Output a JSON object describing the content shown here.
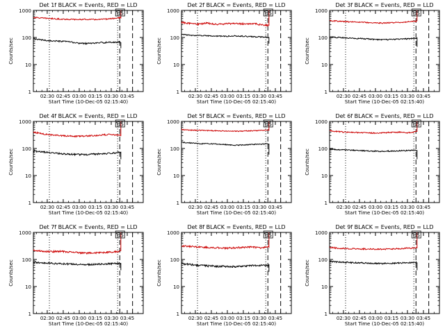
{
  "figure": {
    "background": "#ffffff",
    "axis_color": "#000000",
    "events_color": "#000000",
    "lld_color": "#cc0000"
  },
  "chart_data": [
    {
      "type": "line",
      "title": "Det 1f BLACK = Events, RED = LLD",
      "xlabel": "Start Time (10-Dec-05 02:15:40)",
      "ylabel": "Counts/sec",
      "yscale": "log",
      "ylim": [
        1,
        1000
      ],
      "y_ticks": [
        "1",
        "10",
        "100",
        "1000"
      ],
      "x_ticks": [
        "02:30",
        "02:45",
        "03:00",
        "03:15",
        "03:30",
        "03:45"
      ],
      "x_tick_minutes": [
        135,
        150,
        165,
        180,
        195,
        210
      ],
      "xlim_minutes": [
        122,
        225
      ],
      "marker_label": "ES",
      "vertical_lines": [
        {
          "minutes": 137,
          "style": "dotted"
        },
        {
          "minutes": 201,
          "style": "dotted"
        },
        {
          "minutes": 203,
          "style": "dashed"
        },
        {
          "minutes": 215,
          "style": "dashed"
        }
      ],
      "series": [
        {
          "name": "LLD",
          "color": "#cc0000",
          "start": 122,
          "end": 204,
          "base": [
            550,
            520,
            500,
            480,
            470,
            460,
            470,
            460,
            470,
            500,
            540
          ],
          "jitter": 0.05,
          "spike_to": 1000
        },
        {
          "name": "Events",
          "color": "#000000",
          "start": 122,
          "end": 204,
          "base": [
            90,
            80,
            75,
            72,
            70,
            62,
            60,
            62,
            65,
            66,
            68
          ],
          "jitter": 0.06,
          "spike_to": 40
        }
      ]
    },
    {
      "type": "line",
      "title": "Det 2f BLACK = Events, RED = LLD",
      "xlabel": "Start Time (10-Dec-05 02:15:40)",
      "ylabel": "Counts/sec",
      "yscale": "log",
      "ylim": [
        1,
        1000
      ],
      "y_ticks": [
        "1",
        "10",
        "100",
        "1000"
      ],
      "x_ticks": [
        "02:30",
        "02:45",
        "03:00",
        "03:15",
        "03:30",
        "03:45"
      ],
      "x_tick_minutes": [
        135,
        150,
        165,
        180,
        195,
        210
      ],
      "xlim_minutes": [
        122,
        225
      ],
      "marker_label": "ES",
      "vertical_lines": [
        {
          "minutes": 137,
          "style": "dotted"
        },
        {
          "minutes": 201,
          "style": "dotted"
        },
        {
          "minutes": 203,
          "style": "dashed"
        },
        {
          "minutes": 215,
          "style": "dashed"
        }
      ],
      "series": [
        {
          "name": "LLD",
          "color": "#cc0000",
          "start": 122,
          "end": 204,
          "base": [
            360,
            330,
            310,
            340,
            300,
            320,
            330,
            320,
            330,
            300,
            280
          ],
          "jitter": 0.07,
          "spike_to": 1000
        },
        {
          "name": "Events",
          "color": "#000000",
          "start": 122,
          "end": 204,
          "base": [
            130,
            120,
            118,
            115,
            112,
            110,
            115,
            112,
            108,
            105,
            102
          ],
          "jitter": 0.05,
          "spike_to": 60
        }
      ]
    },
    {
      "type": "line",
      "title": "Det 3f BLACK = Events, RED = LLD",
      "xlabel": "Start Time (10-Dec-05 02:15:40)",
      "ylabel": "Counts/sec",
      "yscale": "log",
      "ylim": [
        1,
        1000
      ],
      "y_ticks": [
        "1",
        "10",
        "100",
        "1000"
      ],
      "x_ticks": [
        "02:30",
        "02:45",
        "03:00",
        "03:15",
        "03:30",
        "03:45"
      ],
      "x_tick_minutes": [
        135,
        150,
        165,
        180,
        195,
        210
      ],
      "xlim_minutes": [
        122,
        225
      ],
      "marker_label": "ES",
      "vertical_lines": [
        {
          "minutes": 137,
          "style": "dotted"
        },
        {
          "minutes": 201,
          "style": "dotted"
        },
        {
          "minutes": 203,
          "style": "dashed"
        },
        {
          "minutes": 215,
          "style": "dashed"
        }
      ],
      "series": [
        {
          "name": "LLD",
          "color": "#cc0000",
          "start": 122,
          "end": 204,
          "base": [
            420,
            400,
            380,
            370,
            360,
            350,
            340,
            350,
            360,
            380,
            400
          ],
          "jitter": 0.05,
          "spike_to": 1000
        },
        {
          "name": "Events",
          "color": "#000000",
          "start": 122,
          "end": 204,
          "base": [
            105,
            100,
            95,
            92,
            90,
            85,
            82,
            84,
            86,
            90,
            95
          ],
          "jitter": 0.05,
          "spike_to": 45
        }
      ]
    },
    {
      "type": "line",
      "title": "Det 4f BLACK = Events, RED = LLD",
      "xlabel": "Start Time (10-Dec-05 02:15:40)",
      "ylabel": "Counts/sec",
      "yscale": "log",
      "ylim": [
        1,
        1000
      ],
      "y_ticks": [
        "1",
        "10",
        "100",
        "1000"
      ],
      "x_ticks": [
        "02:30",
        "02:45",
        "03:00",
        "03:15",
        "03:30",
        "03:45"
      ],
      "x_tick_minutes": [
        135,
        150,
        165,
        180,
        195,
        210
      ],
      "xlim_minutes": [
        122,
        225
      ],
      "marker_label": "ES",
      "vertical_lines": [
        {
          "minutes": 137,
          "style": "dotted"
        },
        {
          "minutes": 201,
          "style": "dotted"
        },
        {
          "minutes": 203,
          "style": "dashed"
        },
        {
          "minutes": 215,
          "style": "dashed"
        }
      ],
      "series": [
        {
          "name": "LLD",
          "color": "#cc0000",
          "start": 122,
          "end": 204,
          "base": [
            400,
            350,
            320,
            300,
            290,
            280,
            290,
            300,
            320,
            330,
            300
          ],
          "jitter": 0.06,
          "spike_to": 1000
        },
        {
          "name": "Events",
          "color": "#000000",
          "start": 122,
          "end": 204,
          "base": [
            80,
            75,
            70,
            65,
            62,
            60,
            60,
            62,
            65,
            68,
            72
          ],
          "jitter": 0.07,
          "spike_to": 40
        }
      ]
    },
    {
      "type": "line",
      "title": "Det 5f BLACK = Events, RED = LLD",
      "xlabel": "Start Time (10-Dec-05 02:15:40)",
      "ylabel": "Counts/sec",
      "yscale": "log",
      "ylim": [
        1,
        1000
      ],
      "y_ticks": [
        "1",
        "10",
        "100",
        "1000"
      ],
      "x_ticks": [
        "02:30",
        "02:45",
        "03:00",
        "03:15",
        "03:30",
        "03:45"
      ],
      "x_tick_minutes": [
        135,
        150,
        165,
        180,
        195,
        210
      ],
      "xlim_minutes": [
        122,
        225
      ],
      "marker_label": "ES",
      "vertical_lines": [
        {
          "minutes": 137,
          "style": "dotted"
        },
        {
          "minutes": 201,
          "style": "dotted"
        },
        {
          "minutes": 203,
          "style": "dashed"
        },
        {
          "minutes": 215,
          "style": "dashed"
        }
      ],
      "series": [
        {
          "name": "LLD",
          "color": "#cc0000",
          "start": 122,
          "end": 204,
          "base": [
            500,
            480,
            470,
            460,
            450,
            440,
            430,
            440,
            450,
            460,
            470
          ],
          "jitter": 0.04,
          "spike_to": 1000
        },
        {
          "name": "Events",
          "color": "#000000",
          "start": 122,
          "end": 204,
          "base": [
            170,
            160,
            150,
            150,
            145,
            140,
            130,
            135,
            140,
            145,
            150
          ],
          "jitter": 0.04,
          "spike_to": 60
        }
      ]
    },
    {
      "type": "line",
      "title": "Det 6f BLACK = Events, RED = LLD",
      "xlabel": "Start Time (10-Dec-05 02:15:40)",
      "ylabel": "Counts/sec",
      "yscale": "log",
      "ylim": [
        1,
        1000
      ],
      "y_ticks": [
        "1",
        "10",
        "100",
        "1000"
      ],
      "x_ticks": [
        "02:30",
        "02:45",
        "03:00",
        "03:15",
        "03:30",
        "03:45"
      ],
      "x_tick_minutes": [
        135,
        150,
        165,
        180,
        195,
        210
      ],
      "xlim_minutes": [
        122,
        225
      ],
      "marker_label": "ES",
      "vertical_lines": [
        {
          "minutes": 137,
          "style": "dotted"
        },
        {
          "minutes": 201,
          "style": "dotted"
        },
        {
          "minutes": 203,
          "style": "dashed"
        },
        {
          "minutes": 215,
          "style": "dashed"
        }
      ],
      "series": [
        {
          "name": "LLD",
          "color": "#cc0000",
          "start": 122,
          "end": 204,
          "base": [
            450,
            420,
            400,
            390,
            380,
            370,
            380,
            390,
            400,
            380,
            420
          ],
          "jitter": 0.05,
          "spike_to": 1000
        },
        {
          "name": "Events",
          "color": "#000000",
          "start": 122,
          "end": 204,
          "base": [
            95,
            90,
            88,
            85,
            82,
            80,
            78,
            80,
            82,
            84,
            85
          ],
          "jitter": 0.05,
          "spike_to": 40
        }
      ]
    },
    {
      "type": "line",
      "title": "Det 7f BLACK = Events, RED = LLD",
      "xlabel": "Start Time (10-Dec-05 02:15:40)",
      "ylabel": "Counts/sec",
      "yscale": "log",
      "ylim": [
        1,
        1000
      ],
      "y_ticks": [
        "1",
        "10",
        "100",
        "1000"
      ],
      "x_ticks": [
        "02:30",
        "02:45",
        "03:00",
        "03:15",
        "03:30",
        "03:45"
      ],
      "x_tick_minutes": [
        135,
        150,
        165,
        180,
        195,
        210
      ],
      "xlim_minutes": [
        122,
        225
      ],
      "marker_label": "ES",
      "vertical_lines": [
        {
          "minutes": 137,
          "style": "dotted"
        },
        {
          "minutes": 201,
          "style": "dotted"
        },
        {
          "minutes": 203,
          "style": "dashed"
        },
        {
          "minutes": 215,
          "style": "dashed"
        }
      ],
      "series": [
        {
          "name": "LLD",
          "color": "#cc0000",
          "start": 122,
          "end": 204,
          "base": [
            220,
            200,
            195,
            200,
            190,
            180,
            170,
            175,
            180,
            190,
            200
          ],
          "jitter": 0.07,
          "spike_to": 1000
        },
        {
          "name": "Events",
          "color": "#000000",
          "start": 122,
          "end": 204,
          "base": [
            80,
            75,
            72,
            70,
            68,
            66,
            64,
            66,
            68,
            70,
            72
          ],
          "jitter": 0.07,
          "spike_to": 40
        }
      ]
    },
    {
      "type": "line",
      "title": "Det 8f BLACK = Events, RED = LLD",
      "xlabel": "Start Time (10-Dec-05 02:15:40)",
      "ylabel": "Counts/sec",
      "yscale": "log",
      "ylim": [
        1,
        1000
      ],
      "y_ticks": [
        "1",
        "10",
        "100",
        "1000"
      ],
      "x_ticks": [
        "02:30",
        "02:45",
        "03:00",
        "03:15",
        "03:30",
        "03:45"
      ],
      "x_tick_minutes": [
        135,
        150,
        165,
        180,
        195,
        210
      ],
      "xlim_minutes": [
        122,
        225
      ],
      "marker_label": "ES",
      "vertical_lines": [
        {
          "minutes": 137,
          "style": "dotted"
        },
        {
          "minutes": 201,
          "style": "dotted"
        },
        {
          "minutes": 203,
          "style": "dashed"
        },
        {
          "minutes": 215,
          "style": "dashed"
        }
      ],
      "series": [
        {
          "name": "LLD",
          "color": "#cc0000",
          "start": 122,
          "end": 204,
          "base": [
            320,
            300,
            290,
            280,
            270,
            260,
            270,
            280,
            290,
            270,
            300
          ],
          "jitter": 0.07,
          "spike_to": 1000
        },
        {
          "name": "Events",
          "color": "#000000",
          "start": 122,
          "end": 204,
          "base": [
            70,
            65,
            60,
            58,
            56,
            55,
            54,
            56,
            58,
            60,
            62
          ],
          "jitter": 0.08,
          "spike_to": 35
        }
      ]
    },
    {
      "type": "line",
      "title": "Det 9f BLACK = Events, RED = LLD",
      "xlabel": "Start Time (10-Dec-05 02:15:40)",
      "ylabel": "Counts/sec",
      "yscale": "log",
      "ylim": [
        1,
        1000
      ],
      "y_ticks": [
        "1",
        "10",
        "100",
        "1000"
      ],
      "x_ticks": [
        "02:30",
        "02:45",
        "03:00",
        "03:15",
        "03:30",
        "03:45"
      ],
      "x_tick_minutes": [
        135,
        150,
        165,
        180,
        195,
        210
      ],
      "xlim_minutes": [
        122,
        225
      ],
      "marker_label": "ES",
      "vertical_lines": [
        {
          "minutes": 137,
          "style": "dotted"
        },
        {
          "minutes": 201,
          "style": "dotted"
        },
        {
          "minutes": 203,
          "style": "dashed"
        },
        {
          "minutes": 215,
          "style": "dashed"
        }
      ],
      "series": [
        {
          "name": "LLD",
          "color": "#cc0000",
          "start": 122,
          "end": 204,
          "base": [
            280,
            260,
            250,
            250,
            245,
            240,
            240,
            245,
            250,
            260,
            270
          ],
          "jitter": 0.06,
          "spike_to": 1000
        },
        {
          "name": "Events",
          "color": "#000000",
          "start": 122,
          "end": 204,
          "base": [
            85,
            80,
            78,
            76,
            74,
            72,
            70,
            72,
            74,
            76,
            78
          ],
          "jitter": 0.06,
          "spike_to": 40
        }
      ]
    }
  ]
}
